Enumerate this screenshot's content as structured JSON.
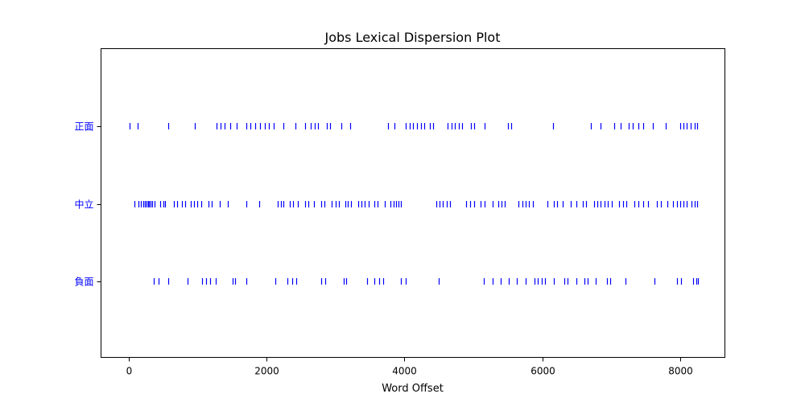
{
  "chart_data": {
    "type": "scatter",
    "title": "Jobs Lexical Dispersion Plot",
    "xlabel": "Word Offset",
    "ylabel": "",
    "xlim": [
      -400,
      8650
    ],
    "grid": false,
    "x_ticks": [
      0,
      2000,
      4000,
      6000,
      8000
    ],
    "y_categories": [
      "正面",
      "中立",
      "負面"
    ],
    "series": [
      {
        "name": "正面",
        "color": "#0000ff",
        "marker": "|",
        "x": [
          20,
          130,
          570,
          960,
          1270,
          1330,
          1390,
          1480,
          1570,
          1710,
          1770,
          1840,
          1910,
          1980,
          2040,
          2100,
          2250,
          2420,
          2560,
          2640,
          2700,
          2750,
          2870,
          2920,
          3080,
          3210,
          3760,
          3860,
          4020,
          4080,
          4130,
          4180,
          4240,
          4290,
          4370,
          4420,
          4630,
          4680,
          4730,
          4790,
          4840,
          4960,
          5010,
          5170,
          5500,
          5550,
          6160,
          6710,
          6840,
          7040,
          7140,
          7250,
          7310,
          7390,
          7460,
          7600,
          7790,
          8000,
          8050,
          8100,
          8150,
          8210,
          8250
        ]
      },
      {
        "name": "中立",
        "color": "#0000ff",
        "marker": "|",
        "x": [
          90,
          140,
          180,
          210,
          240,
          260,
          280,
          300,
          320,
          340,
          380,
          460,
          500,
          530,
          660,
          700,
          770,
          820,
          900,
          950,
          1000,
          1050,
          1160,
          1210,
          1320,
          1440,
          1710,
          1900,
          2160,
          2210,
          2250,
          2340,
          2380,
          2460,
          2560,
          2610,
          2690,
          2790,
          2840,
          2950,
          3000,
          3050,
          3140,
          3180,
          3230,
          3330,
          3380,
          3430,
          3480,
          3560,
          3610,
          3720,
          3800,
          3840,
          3880,
          3920,
          3950,
          4460,
          4510,
          4560,
          4610,
          4660,
          4900,
          4950,
          5010,
          5110,
          5160,
          5280,
          5360,
          5410,
          5460,
          5660,
          5710,
          5760,
          5810,
          5870,
          6080,
          6170,
          6220,
          6300,
          6410,
          6500,
          6590,
          6630,
          6750,
          6800,
          6850,
          6900,
          6950,
          7010,
          7120,
          7170,
          7220,
          7340,
          7390,
          7460,
          7530,
          7660,
          7720,
          7810,
          7900,
          7950,
          8000,
          8050,
          8100,
          8170,
          8210,
          8250
        ]
      },
      {
        "name": "負面",
        "color": "#0000ff",
        "marker": "|",
        "x": [
          370,
          430,
          580,
          850,
          1060,
          1120,
          1180,
          1260,
          1510,
          1550,
          1710,
          2130,
          2300,
          2370,
          2430,
          2790,
          2850,
          3120,
          3150,
          3460,
          3570,
          3630,
          3690,
          3950,
          4020,
          4500,
          5150,
          5280,
          5400,
          5520,
          5630,
          5760,
          5890,
          5940,
          5990,
          6040,
          6170,
          6320,
          6370,
          6500,
          6610,
          6660,
          6780,
          6940,
          6990,
          7210,
          7630,
          7960,
          8010,
          8190,
          8230,
          8260
        ]
      }
    ]
  }
}
